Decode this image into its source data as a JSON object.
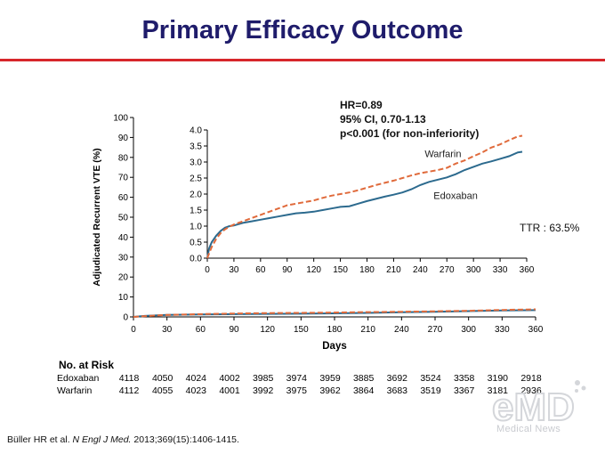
{
  "slide": {
    "title": "Primary Efficacy Outcome",
    "stats": [
      "HR=0.89",
      "95% CI,  0.70-1.13",
      "p<0.001 (for non-inferiority)"
    ],
    "ttr": "TTR : 63.5%",
    "citation_prefix": "Büller HR et al. ",
    "citation_journal": "N Engl J Med.",
    "citation_suffix": " 2013;369(15):1406-1415.",
    "watermark": "Medical News",
    "accent_color": "#d7262b",
    "title_color": "#1f1c6b"
  },
  "chart_data": [
    {
      "type": "line",
      "ylabel": "Adjudicated Recurrent VTE (%)",
      "xlabel": "Days",
      "xlim": [
        0,
        360
      ],
      "ylim": [
        0,
        100
      ],
      "x_ticks": [
        0,
        30,
        60,
        90,
        120,
        150,
        180,
        210,
        240,
        270,
        300,
        330,
        360
      ],
      "y_ticks": [
        0,
        10,
        20,
        30,
        40,
        50,
        60,
        70,
        80,
        90,
        100
      ],
      "grid": false,
      "series": [
        {
          "name": "Edoxaban",
          "color": "#2c6a8e",
          "style": "solid",
          "x": [
            0,
            10,
            30,
            60,
            90,
            120,
            150,
            180,
            210,
            240,
            270,
            300,
            330,
            360
          ],
          "y": [
            0,
            0.5,
            1.0,
            1.2,
            1.4,
            1.5,
            1.6,
            1.8,
            2.0,
            2.3,
            2.6,
            2.9,
            3.2,
            3.4
          ]
        },
        {
          "name": "Warfarin",
          "color": "#e06a3b",
          "style": "dashed",
          "x": [
            0,
            10,
            30,
            60,
            90,
            120,
            150,
            180,
            210,
            240,
            270,
            300,
            330,
            360
          ],
          "y": [
            0,
            0.4,
            1.0,
            1.4,
            1.7,
            1.9,
            2.0,
            2.2,
            2.4,
            2.6,
            2.8,
            3.1,
            3.5,
            3.8
          ]
        }
      ]
    },
    {
      "type": "line",
      "role": "inset",
      "xlim": [
        0,
        360
      ],
      "ylim": [
        0,
        4
      ],
      "x_ticks": [
        0,
        30,
        60,
        90,
        120,
        150,
        180,
        210,
        240,
        270,
        300,
        330,
        360
      ],
      "y_ticks": [
        "0.0",
        "0.5",
        "1.0",
        "1.5",
        "2.0",
        "2.5",
        "3.0",
        "3.5",
        "4.0"
      ],
      "series": [
        {
          "name": "Edoxaban",
          "color": "#2c6a8e",
          "style": "solid",
          "x": [
            0,
            2,
            5,
            10,
            15,
            20,
            25,
            30,
            40,
            50,
            60,
            70,
            80,
            90,
            100,
            110,
            120,
            130,
            140,
            150,
            160,
            170,
            180,
            190,
            200,
            210,
            220,
            230,
            240,
            250,
            260,
            270,
            280,
            290,
            300,
            310,
            320,
            330,
            340,
            350,
            355
          ],
          "y": [
            0,
            0.3,
            0.5,
            0.7,
            0.85,
            0.95,
            1.0,
            1.02,
            1.1,
            1.15,
            1.2,
            1.25,
            1.3,
            1.35,
            1.4,
            1.42,
            1.45,
            1.5,
            1.55,
            1.6,
            1.62,
            1.7,
            1.78,
            1.85,
            1.92,
            1.98,
            2.05,
            2.15,
            2.28,
            2.38,
            2.45,
            2.52,
            2.62,
            2.75,
            2.85,
            2.95,
            3.02,
            3.1,
            3.18,
            3.3,
            3.32
          ]
        },
        {
          "name": "Warfarin",
          "color": "#e06a3b",
          "style": "dashed",
          "x": [
            0,
            2,
            5,
            10,
            15,
            20,
            25,
            30,
            40,
            50,
            60,
            70,
            80,
            90,
            100,
            110,
            120,
            130,
            140,
            150,
            160,
            170,
            180,
            190,
            200,
            210,
            220,
            230,
            240,
            250,
            260,
            270,
            280,
            290,
            300,
            310,
            320,
            330,
            340,
            350,
            355
          ],
          "y": [
            0,
            0.15,
            0.35,
            0.6,
            0.78,
            0.9,
            0.98,
            1.05,
            1.15,
            1.25,
            1.35,
            1.45,
            1.55,
            1.65,
            1.7,
            1.75,
            1.8,
            1.88,
            1.95,
            2.0,
            2.05,
            2.12,
            2.2,
            2.28,
            2.35,
            2.42,
            2.5,
            2.58,
            2.65,
            2.7,
            2.75,
            2.82,
            2.95,
            3.05,
            3.18,
            3.3,
            3.45,
            3.55,
            3.68,
            3.8,
            3.82
          ]
        }
      ],
      "annotations": [
        {
          "text": "Warfarin",
          "x": 245,
          "y": 3.15
        },
        {
          "text": "Edoxaban",
          "x": 255,
          "y": 1.85
        }
      ]
    }
  ],
  "risk_table": {
    "header": "No. at Risk",
    "rows": [
      {
        "label": "Edoxaban",
        "values": [
          "4118",
          "4050",
          "4024",
          "4002",
          "3985",
          "3974",
          "3959",
          "3885",
          "3692",
          "3524",
          "3358",
          "3190",
          "2918"
        ]
      },
      {
        "label": "Warfarin",
        "values": [
          "4112",
          "4055",
          "4023",
          "4001",
          "3992",
          "3975",
          "3962",
          "3864",
          "3683",
          "3519",
          "3367",
          "3181",
          "2936"
        ]
      }
    ]
  }
}
